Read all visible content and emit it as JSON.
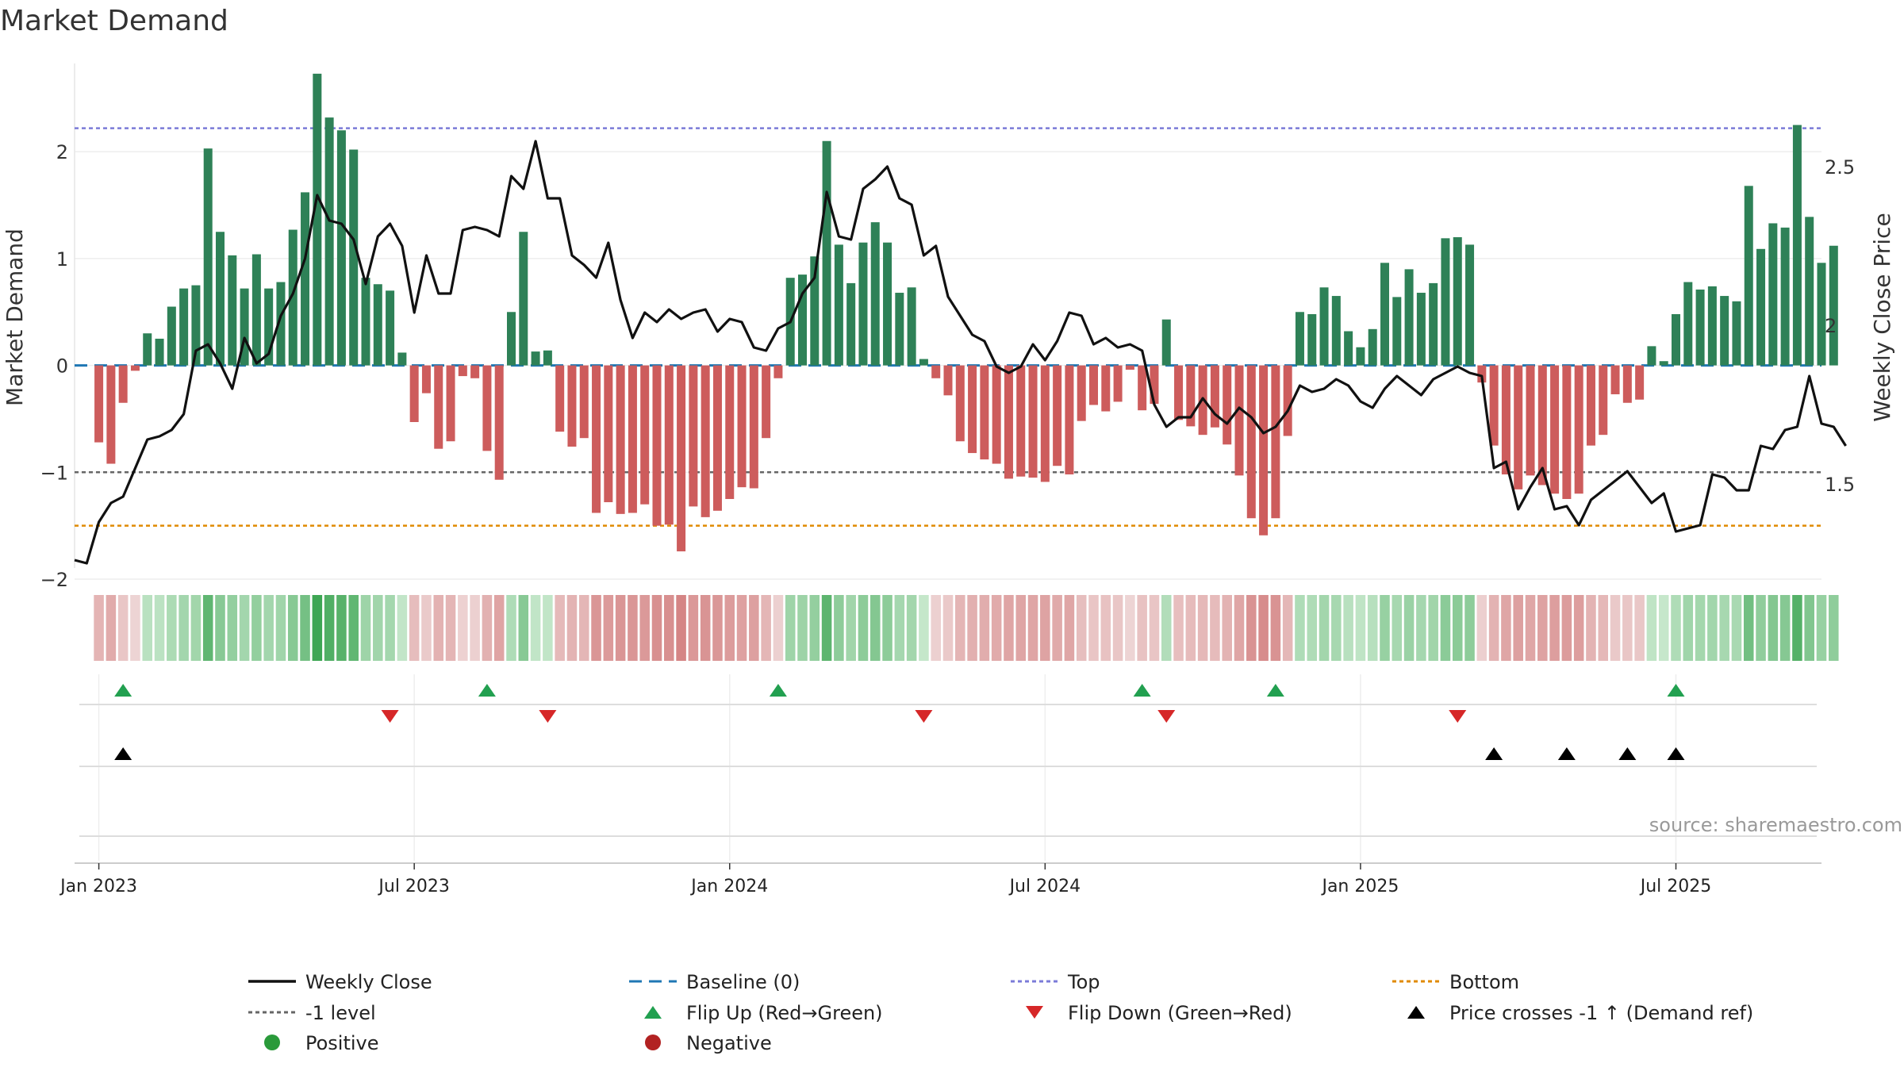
{
  "chart_data": {
    "type": "bar",
    "title": "Market Demand",
    "ylabel": "Market Demand",
    "y2label": "Weekly Close Price",
    "ylim": [
      -2,
      2.9
    ],
    "y2lim": [
      1.2,
      2.85
    ],
    "yticks": [
      -2,
      -1,
      0,
      1,
      2
    ],
    "ytick_labels": [
      "−2",
      "−1",
      "0",
      "1",
      "2"
    ],
    "y2ticks": [
      1.5,
      2,
      2.5
    ],
    "y2tick_labels": [
      "1.5",
      "2",
      "2.5"
    ],
    "x_tick_labels": [
      "Jan 2023",
      "Jul 2023",
      "Jan 2024",
      "Jul 2024",
      "Jan 2025",
      "Jul 2025"
    ],
    "x_tick_weeks": [
      0,
      26,
      52,
      78,
      104,
      130
    ],
    "week_range": [
      -2,
      142
    ],
    "reference_lines": {
      "top": 2.22,
      "bottom": -1.5,
      "minus_one": -1.0,
      "baseline": 0
    },
    "series": [
      {
        "name": "Market Demand",
        "type": "bar",
        "start_week": 0,
        "values": [
          -0.72,
          -0.92,
          -0.35,
          -0.05,
          0.3,
          0.25,
          0.55,
          0.72,
          0.75,
          2.03,
          1.25,
          1.03,
          0.72,
          1.04,
          0.72,
          0.78,
          1.27,
          1.62,
          2.73,
          2.32,
          2.2,
          2.02,
          0.82,
          0.76,
          0.7,
          0.12,
          -0.53,
          -0.26,
          -0.78,
          -0.71,
          -0.1,
          -0.12,
          -0.8,
          -1.07,
          0.5,
          1.25,
          0.13,
          0.14,
          -0.62,
          -0.76,
          -0.68,
          -1.38,
          -1.28,
          -1.39,
          -1.38,
          -1.3,
          -1.5,
          -1.49,
          -1.74,
          -1.32,
          -1.42,
          -1.36,
          -1.25,
          -1.14,
          -1.15,
          -0.68,
          -0.12,
          0.82,
          0.85,
          1.02,
          2.1,
          1.13,
          0.77,
          1.15,
          1.34,
          1.15,
          0.68,
          0.73,
          0.06,
          -0.12,
          -0.28,
          -0.71,
          -0.82,
          -0.88,
          -0.92,
          -1.06,
          -1.04,
          -1.05,
          -1.09,
          -0.94,
          -1.02,
          -0.52,
          -0.37,
          -0.43,
          -0.34,
          -0.04,
          -0.42,
          -0.36,
          0.43,
          -0.51,
          -0.57,
          -0.65,
          -0.58,
          -0.74,
          -1.03,
          -1.43,
          -1.59,
          -1.43,
          -0.66,
          0.5,
          0.48,
          0.73,
          0.65,
          0.32,
          0.17,
          0.34,
          0.96,
          0.64,
          0.9,
          0.68,
          0.77,
          1.19,
          1.2,
          1.13,
          -0.16,
          -0.75,
          -1.02,
          -1.16,
          -1.03,
          -1.12,
          -1.2,
          -1.25,
          -1.2,
          -0.75,
          -0.65,
          -0.27,
          -0.35,
          -0.32,
          0.18,
          0.04,
          0.48,
          0.78,
          0.71,
          0.74,
          0.65,
          0.6,
          1.68,
          1.09,
          1.33,
          1.29,
          2.25,
          1.39,
          0.96,
          1.12
        ]
      },
      {
        "name": "Weekly Close",
        "type": "line",
        "start_week": -2,
        "values": [
          1.26,
          1.25,
          1.38,
          1.44,
          1.46,
          1.55,
          1.64,
          1.65,
          1.67,
          1.72,
          1.92,
          1.94,
          1.88,
          1.8,
          1.96,
          1.88,
          1.91,
          2.03,
          2.1,
          2.21,
          2.41,
          2.33,
          2.32,
          2.27,
          2.13,
          2.28,
          2.32,
          2.25,
          2.04,
          2.22,
          2.1,
          2.1,
          2.3,
          2.31,
          2.3,
          2.28,
          2.47,
          2.43,
          2.58,
          2.4,
          2.4,
          2.22,
          2.19,
          2.15,
          2.26,
          2.08,
          1.96,
          2.04,
          2.01,
          2.05,
          2.02,
          2.04,
          2.05,
          1.98,
          2.02,
          2.01,
          1.93,
          1.92,
          1.99,
          2.01,
          2.1,
          2.15,
          2.42,
          2.28,
          2.27,
          2.43,
          2.46,
          2.5,
          2.4,
          2.38,
          2.22,
          2.25,
          2.09,
          2.03,
          1.97,
          1.95,
          1.87,
          1.85,
          1.87,
          1.94,
          1.89,
          1.95,
          2.04,
          2.03,
          1.94,
          1.96,
          1.93,
          1.94,
          1.92,
          1.75,
          1.68,
          1.71,
          1.71,
          1.77,
          1.72,
          1.69,
          1.74,
          1.71,
          1.66,
          1.68,
          1.73,
          1.81,
          1.79,
          1.8,
          1.83,
          1.81,
          1.76,
          1.74,
          1.8,
          1.84,
          1.81,
          1.78,
          1.83,
          1.85,
          1.87,
          1.85,
          1.84,
          1.55,
          1.57,
          1.42,
          1.49,
          1.55,
          1.42,
          1.43,
          1.37,
          1.45,
          1.48,
          1.51,
          1.54,
          1.49,
          1.44,
          1.47,
          1.35,
          1.36,
          1.37,
          1.53,
          1.52,
          1.48,
          1.48,
          1.62,
          1.61,
          1.67,
          1.68,
          1.84,
          1.69,
          1.68,
          1.62
        ]
      }
    ],
    "flip_up_weeks": [
      2,
      32,
      56,
      86,
      97,
      130
    ],
    "flip_down_weeks": [
      24,
      37,
      68,
      88,
      112
    ],
    "price_cross_weeks": [
      2,
      115,
      121,
      126,
      130
    ],
    "legend": {
      "placement": "bottom",
      "entries": [
        {
          "label": "Weekly Close",
          "kind": "line",
          "color": "#111111"
        },
        {
          "label": "Baseline (0)",
          "kind": "dash",
          "color": "#1f77b4"
        },
        {
          "label": "Top",
          "kind": "dot",
          "color": "#7b7bd8"
        },
        {
          "label": "Bottom",
          "kind": "dot",
          "color": "#e08a00"
        },
        {
          "label": "-1 level",
          "kind": "dot",
          "color": "#666666"
        },
        {
          "label": "Flip Up (Red→Green)",
          "kind": "tri-up",
          "color": "#22a050"
        },
        {
          "label": "Flip Down (Green→Red)",
          "kind": "tri-down",
          "color": "#d62728"
        },
        {
          "label": "Price crosses -1 ↑ (Demand ref)",
          "kind": "tri-up",
          "color": "#000000"
        },
        {
          "label": "Positive",
          "kind": "circle",
          "color": "#2a9a3a"
        },
        {
          "label": "Negative",
          "kind": "circle",
          "color": "#b22222"
        }
      ]
    },
    "source": "source: sharemaestro.com",
    "colors": {
      "positive": "#2e8157",
      "negative": "#cd5c5c",
      "price": "#111111"
    }
  }
}
